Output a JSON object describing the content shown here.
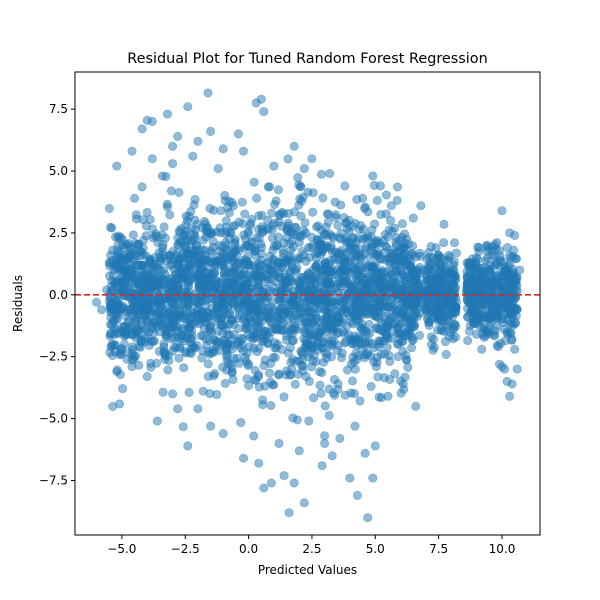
{
  "chart_data": {
    "type": "scatter",
    "title": "Residual Plot for Tuned Random Forest Regression",
    "xlabel": "Predicted Values",
    "ylabel": "Residuals",
    "xlim": [
      -6.85,
      11.5
    ],
    "ylim": [
      -9.7,
      9.0
    ],
    "xticks": [
      -5,
      -2.5,
      0,
      2.5,
      5,
      7.5,
      10
    ],
    "xtick_labels": [
      "−5.0",
      "−2.5",
      "0.0",
      "2.5",
      "5.0",
      "7.5",
      "10.0"
    ],
    "yticks": [
      -7.5,
      -5,
      -2.5,
      0,
      2.5,
      5,
      7.5
    ],
    "ytick_labels": [
      "−7.5",
      "−5.0",
      "−2.5",
      "0.0",
      "2.5",
      "5.0",
      "7.5"
    ],
    "grid": false,
    "point_color": "#1f77b4",
    "point_alpha": 0.5,
    "reference_line": {
      "y": 0,
      "color": "#d62728",
      "style": "dashed"
    },
    "series": [
      {
        "points": [
          [
            -6.0,
            -0.3
          ],
          [
            -5.8,
            -0.6
          ],
          [
            -5.2,
            5.2
          ],
          [
            -4.6,
            5.8
          ],
          [
            -4.2,
            6.7
          ],
          [
            -4.0,
            7.05
          ],
          [
            -3.8,
            7.0
          ],
          [
            -3.2,
            7.3
          ],
          [
            -3.0,
            6.0
          ],
          [
            -2.8,
            6.4
          ],
          [
            -2.4,
            7.6
          ],
          [
            -2.0,
            6.2
          ],
          [
            -1.5,
            6.6
          ],
          [
            -1.6,
            8.15
          ],
          [
            -1.0,
            5.9
          ],
          [
            -0.4,
            6.5
          ],
          [
            0.3,
            7.75
          ],
          [
            0.5,
            7.9
          ],
          [
            0.6,
            7.4
          ],
          [
            1.8,
            6.0
          ],
          [
            2.5,
            5.5
          ],
          [
            -5.2,
            -3.1
          ],
          [
            -4.8,
            -2.6
          ],
          [
            -4.6,
            -2.9
          ],
          [
            -4.0,
            -3.3
          ],
          [
            -3.6,
            -5.1
          ],
          [
            -3.0,
            -4.0
          ],
          [
            -2.4,
            -6.1
          ],
          [
            -2.0,
            -4.6
          ],
          [
            -1.0,
            -5.6
          ],
          [
            -0.2,
            -6.6
          ],
          [
            0.4,
            -6.8
          ],
          [
            0.6,
            -7.8
          ],
          [
            0.9,
            -7.6
          ],
          [
            1.4,
            -7.3
          ],
          [
            1.8,
            -7.6
          ],
          [
            1.6,
            -8.8
          ],
          [
            2.2,
            -8.4
          ],
          [
            2.9,
            -6.9
          ],
          [
            3.3,
            -6.5
          ],
          [
            4.0,
            -7.4
          ],
          [
            4.3,
            -8.1
          ],
          [
            4.7,
            -9.0
          ],
          [
            4.9,
            -7.4
          ],
          [
            5.0,
            -6.1
          ],
          [
            5.5,
            -4.1
          ],
          [
            6.1,
            -3.6
          ],
          [
            6.6,
            -4.5
          ],
          [
            5.9,
            -2.5
          ],
          [
            6.8,
            3.6
          ],
          [
            6.5,
            3.1
          ],
          [
            5.6,
            3.0
          ],
          [
            5.2,
            4.4
          ],
          [
            4.9,
            4.8
          ],
          [
            -5.4,
            2.7
          ],
          [
            -5.3,
            -1.6
          ],
          [
            -5.5,
            1.3
          ],
          [
            -5.6,
            0.2
          ],
          [
            -5.0,
            -2.2
          ],
          [
            -4.5,
            3.9
          ],
          [
            -3.8,
            5.5
          ],
          [
            -3.4,
            4.8
          ],
          [
            -3.0,
            5.3
          ],
          [
            -2.2,
            5.6
          ],
          [
            -1.2,
            5.1
          ],
          [
            -0.2,
            5.8
          ],
          [
            1.0,
            5.2
          ],
          [
            2.2,
            5.1
          ],
          [
            3.2,
            4.9
          ],
          [
            3.8,
            4.4
          ],
          [
            4.5,
            3.9
          ],
          [
            -2.8,
            -4.6
          ],
          [
            -1.5,
            -5.3
          ],
          [
            0.2,
            -5.7
          ],
          [
            1.2,
            -6.0
          ],
          [
            2.0,
            -6.3
          ],
          [
            3.0,
            -6.0
          ],
          [
            3.6,
            -5.8
          ],
          [
            4.2,
            -5.3
          ],
          [
            4.6,
            -6.4
          ],
          [
            7.1,
            1.7
          ],
          [
            7.4,
            1.9
          ],
          [
            7.6,
            1.5
          ],
          [
            7.9,
            1.6
          ],
          [
            8.1,
            1.2
          ],
          [
            7.2,
            -1.0
          ],
          [
            7.6,
            -1.4
          ],
          [
            7.9,
            -1.1
          ],
          [
            7.4,
            -0.8
          ],
          [
            7.0,
            -0.6
          ],
          [
            8.2,
            -0.3
          ],
          [
            7.8,
            0.4
          ],
          [
            7.3,
            0.6
          ],
          [
            7.6,
            0.1
          ],
          [
            6.9,
            1.0
          ],
          [
            7.3,
            -1.8
          ],
          [
            8.0,
            -0.7
          ],
          [
            8.6,
            0.2
          ],
          [
            8.9,
            -0.6
          ],
          [
            8.7,
            0.8
          ],
          [
            9.0,
            -1.6
          ],
          [
            9.2,
            -2.2
          ],
          [
            9.1,
            1.9
          ],
          [
            9.4,
            2.0
          ],
          [
            9.6,
            1.6
          ],
          [
            9.9,
            -2.8
          ],
          [
            10.0,
            -2.9
          ],
          [
            10.1,
            -3.0
          ],
          [
            10.2,
            -1.5
          ],
          [
            10.4,
            -1.8
          ],
          [
            10.5,
            -2.2
          ],
          [
            10.6,
            -3.0
          ],
          [
            10.2,
            -3.5
          ],
          [
            10.3,
            -4.1
          ],
          [
            10.4,
            -3.6
          ],
          [
            10.0,
            3.4
          ],
          [
            10.3,
            2.5
          ],
          [
            10.5,
            2.4
          ],
          [
            10.7,
            1.0
          ],
          [
            10.6,
            -0.6
          ],
          [
            9.7,
            -1.6
          ],
          [
            9.5,
            0.9
          ],
          [
            9.3,
            -0.2
          ],
          [
            9.8,
            0.5
          ],
          [
            10.4,
            0.1
          ],
          [
            9.9,
            1.8
          ],
          [
            10.1,
            0.9
          ]
        ]
      }
    ]
  }
}
